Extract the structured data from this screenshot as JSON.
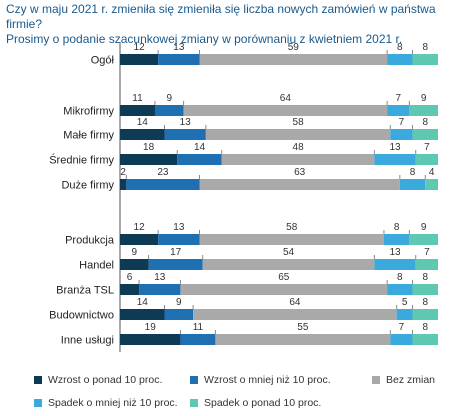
{
  "title_lines": [
    "Czy w maju 2021 r. zmieniła się zmieniła się liczba nowych zamówień w państwa firmie?",
    "Prosimy o podanie szacunkowej zmiany w porównaniu z kwietniem 2021 r."
  ],
  "chart_data": {
    "type": "bar",
    "orientation": "horizontal",
    "stacked": true,
    "title": "Czy w maju 2021 r. zmieniła się zmieniła się liczba nowych zamówień w państwa firmie? Prosimy o podanie szacunkowej zmiany w porównaniu z kwietniem 2021 r.",
    "categories": [
      "Ogół",
      "Mikrofirmy",
      "Małe firmy",
      "Średnie firmy",
      "Duże firmy",
      "Produkcja",
      "Handel",
      "Branża TSL",
      "Budownictwo",
      "Inne usługi"
    ],
    "series": [
      {
        "name": "Wzrost o ponad 10 proc.",
        "color": "#0d3a54",
        "values": [
          12,
          11,
          14,
          18,
          2,
          12,
          9,
          6,
          14,
          19
        ]
      },
      {
        "name": "Wzrost o mniej niż 10 proc.",
        "color": "#1f6fb3",
        "values": [
          13,
          9,
          13,
          14,
          23,
          13,
          17,
          13,
          9,
          11
        ]
      },
      {
        "name": "Bez zmian",
        "color": "#a9a9a9",
        "values": [
          59,
          64,
          58,
          48,
          63,
          58,
          54,
          65,
          64,
          55
        ]
      },
      {
        "name": "Spadek o mniej niż 10 proc.",
        "color": "#3aa9dd",
        "values": [
          8,
          7,
          7,
          13,
          8,
          8,
          13,
          8,
          5,
          7
        ]
      },
      {
        "name": "Spadek o ponad 10 proc.",
        "color": "#5fc8b0",
        "values": [
          8,
          9,
          8,
          7,
          4,
          9,
          7,
          8,
          8,
          8
        ]
      }
    ],
    "legend_position": "bottom",
    "grid": false
  }
}
